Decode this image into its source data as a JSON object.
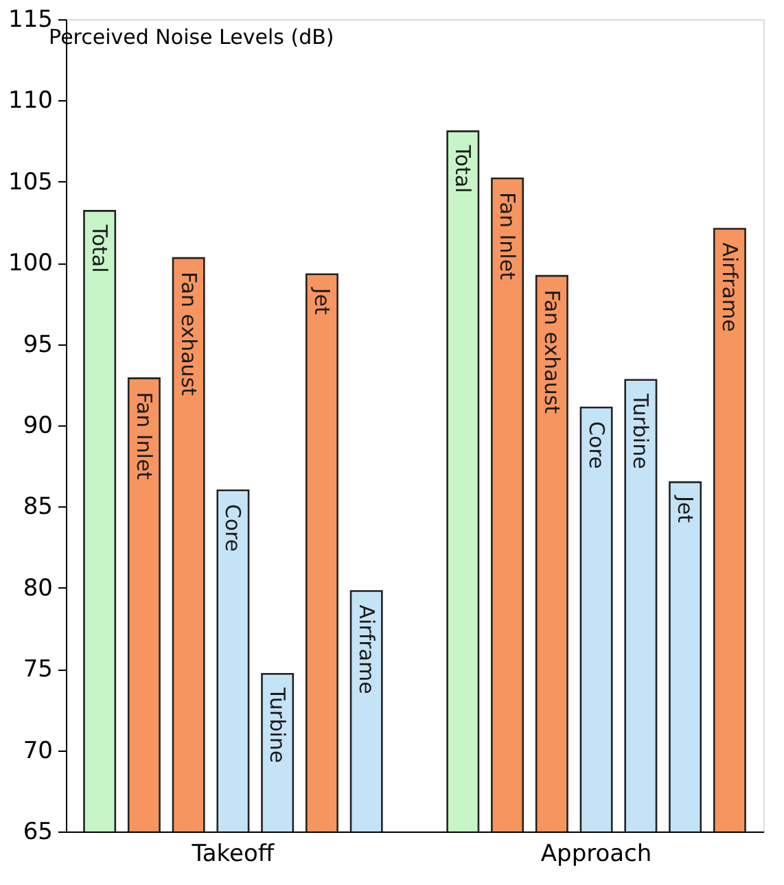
{
  "chart_data": {
    "type": "bar",
    "title": "Perceived Noise Levels (dB)",
    "categories": [
      "Takeoff",
      "Approach"
    ],
    "series": [
      {
        "name": "Total",
        "values": [
          103.2,
          108.1
        ],
        "colors": [
          "#c8f5c8",
          "#c8f5c8"
        ]
      },
      {
        "name": "Fan Inlet",
        "values": [
          92.9,
          105.2
        ],
        "colors": [
          "#f79560",
          "#f79560"
        ]
      },
      {
        "name": "Fan exhaust",
        "values": [
          100.3,
          99.2
        ],
        "colors": [
          "#f79560",
          "#f79560"
        ]
      },
      {
        "name": "Core",
        "values": [
          86.0,
          91.1
        ],
        "colors": [
          "#c5e3f6",
          "#c5e3f6"
        ]
      },
      {
        "name": "Turbine",
        "values": [
          74.7,
          92.8
        ],
        "colors": [
          "#c5e3f6",
          "#c5e3f6"
        ]
      },
      {
        "name": "Jet",
        "values": [
          99.3,
          86.5
        ],
        "colors": [
          "#f79560",
          "#c5e3f6"
        ]
      },
      {
        "name": "Airframe",
        "values": [
          79.8,
          102.1
        ],
        "colors": [
          "#c5e3f6",
          "#f79560"
        ]
      }
    ],
    "ylim": [
      65,
      115
    ],
    "yticks": [
      65,
      70,
      75,
      80,
      85,
      90,
      95,
      100,
      105,
      110,
      115
    ],
    "grid": false
  }
}
